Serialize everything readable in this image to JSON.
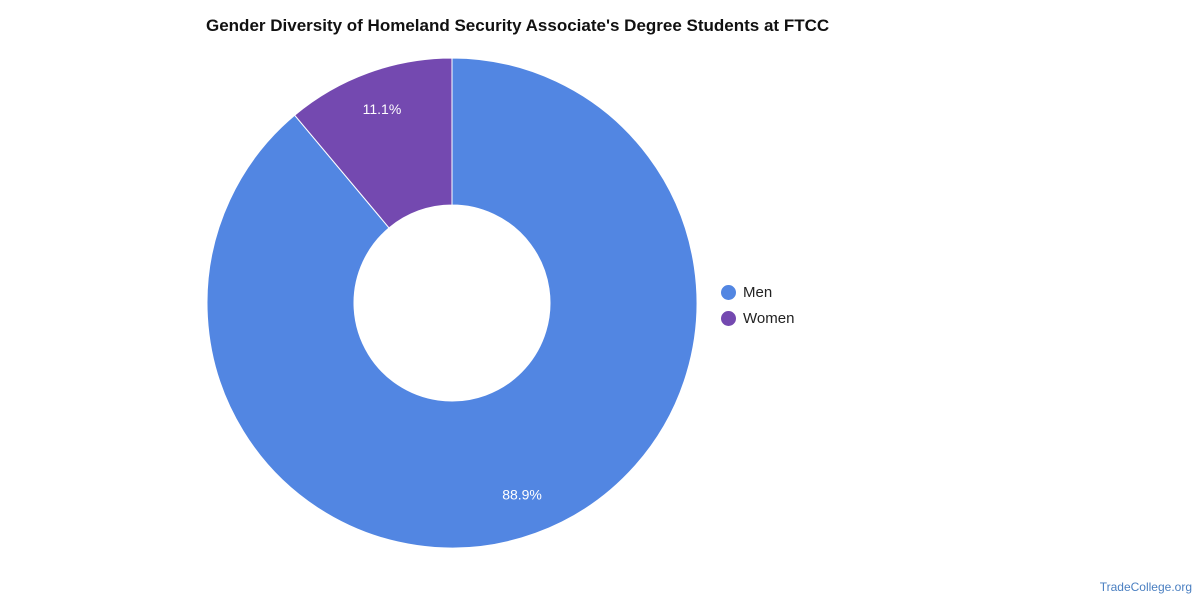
{
  "chart_data": {
    "type": "pie",
    "variant": "donut",
    "title": "Gender Diversity of Homeland Security Associate's Degree Students at FTCC",
    "categories": [
      "Men",
      "Women"
    ],
    "values": [
      88.9,
      11.1
    ],
    "value_labels": [
      "88.9%",
      "11.1%"
    ],
    "colors": [
      "#5286e2",
      "#7449b0"
    ],
    "legend": {
      "placement": "right",
      "entries": [
        "Men",
        "Women"
      ]
    }
  },
  "footer": {
    "credit": "TradeCollege.org"
  }
}
